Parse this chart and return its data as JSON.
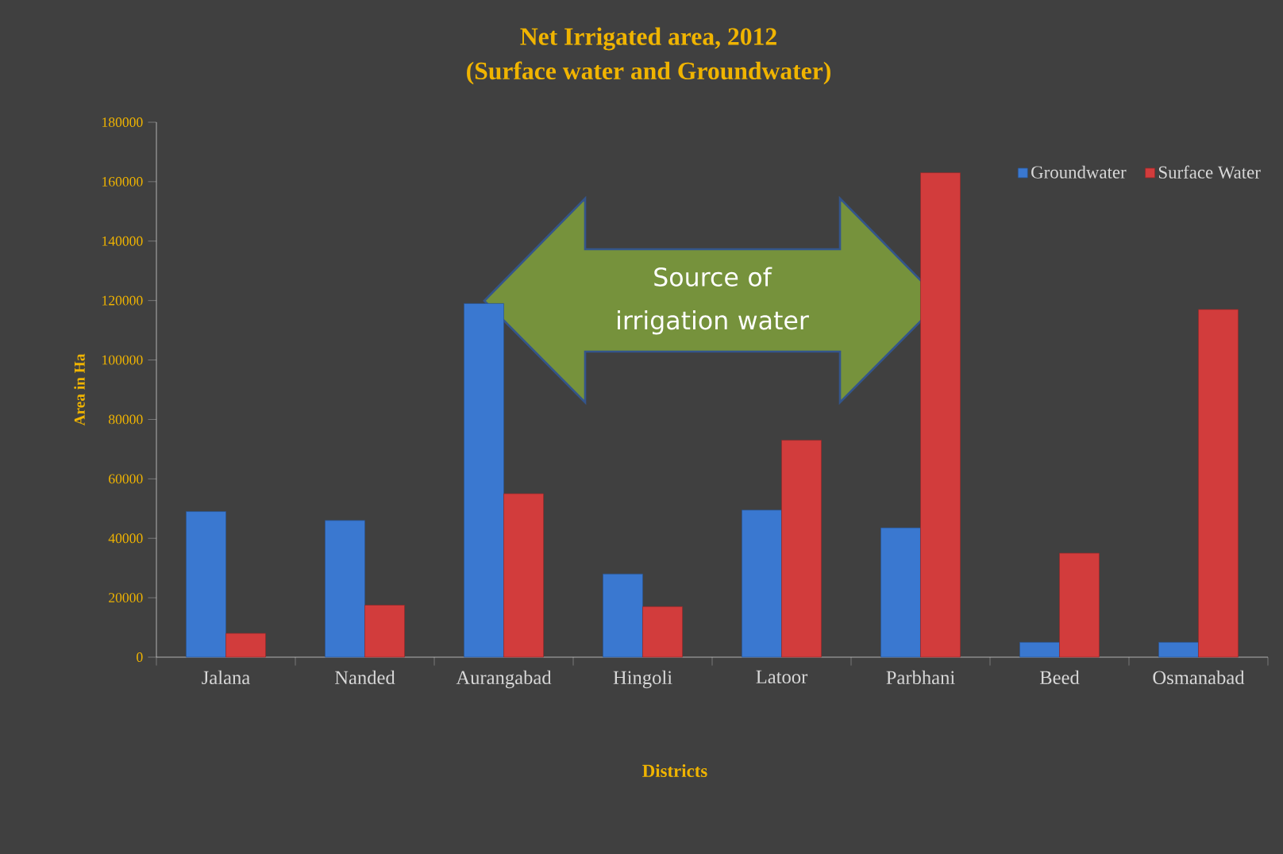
{
  "chart_data": {
    "type": "bar",
    "title": "Net Irrigated area, 2012",
    "subtitle": "(Surface water and Groundwater)",
    "xlabel": "Districts",
    "ylabel": "Area in Ha",
    "categories": [
      "Jalana",
      "Nanded",
      "Aurangabad",
      "Hingoli",
      "Latoor",
      "Parbhani",
      "Beed",
      "Osmanabad"
    ],
    "series": [
      {
        "name": "Groundwater",
        "color": "#3a78d0",
        "values": [
          49000,
          46000,
          119000,
          28000,
          49500,
          43500,
          5000,
          5000
        ]
      },
      {
        "name": "Surface Water",
        "color": "#d23c3c",
        "values": [
          8000,
          17500,
          55000,
          17000,
          73000,
          163000,
          35000,
          117000
        ]
      }
    ],
    "ylim": [
      0,
      180000
    ],
    "yticks": [
      0,
      20000,
      40000,
      60000,
      80000,
      100000,
      120000,
      140000,
      160000,
      180000
    ],
    "grid": false,
    "legend": "top right",
    "annotations": [
      "Source of irrigation water"
    ]
  }
}
